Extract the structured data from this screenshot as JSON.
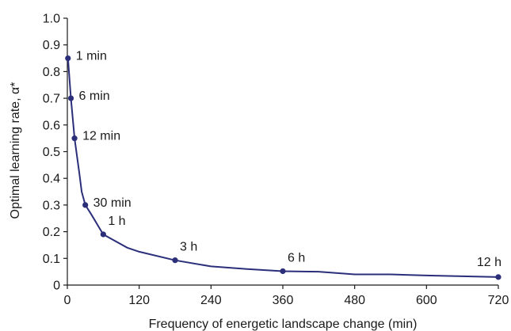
{
  "chart_data": {
    "type": "line",
    "xlabel": "Frequency of energetic landscape change (min)",
    "ylabel": "Optimal learning rate, α*",
    "xlim": [
      0,
      720
    ],
    "ylim": [
      0,
      1.0
    ],
    "xticks": [
      0,
      120,
      240,
      360,
      480,
      600,
      720
    ],
    "xtick_labels": [
      "0",
      "120",
      "240",
      "360",
      "480",
      "600",
      "720"
    ],
    "yticks": [
      0,
      0.1,
      0.2,
      0.3,
      0.4,
      0.5,
      0.6,
      0.7,
      0.8,
      0.9,
      1.0
    ],
    "ytick_labels": [
      "0",
      "0.1",
      "0.2",
      "0.3",
      "0.4",
      "0.5",
      "0.6",
      "0.7",
      "0.8",
      "0.9",
      "1.0"
    ],
    "grid": false,
    "line_color": "#2b2f7a",
    "curve": {
      "x": [
        1,
        6,
        12,
        20,
        24,
        30,
        40,
        60,
        100,
        120,
        180,
        240,
        300,
        360,
        420,
        480,
        540,
        600,
        660,
        720
      ],
      "y": [
        0.85,
        0.7,
        0.55,
        0.42,
        0.35,
        0.3,
        0.265,
        0.19,
        0.14,
        0.125,
        0.093,
        0.07,
        0.06,
        0.052,
        0.05,
        0.04,
        0.04,
        0.036,
        0.033,
        0.03
      ]
    },
    "points": [
      {
        "x": 1,
        "y": 0.85,
        "label": "1 min"
      },
      {
        "x": 6,
        "y": 0.7,
        "label": "6 min"
      },
      {
        "x": 12,
        "y": 0.55,
        "label": "12 min"
      },
      {
        "x": 30,
        "y": 0.3,
        "label": "30 min"
      },
      {
        "x": 60,
        "y": 0.19,
        "label": "1 h"
      },
      {
        "x": 180,
        "y": 0.093,
        "label": "3 h"
      },
      {
        "x": 360,
        "y": 0.052,
        "label": "6 h"
      },
      {
        "x": 720,
        "y": 0.03,
        "label": "12 h"
      }
    ]
  }
}
